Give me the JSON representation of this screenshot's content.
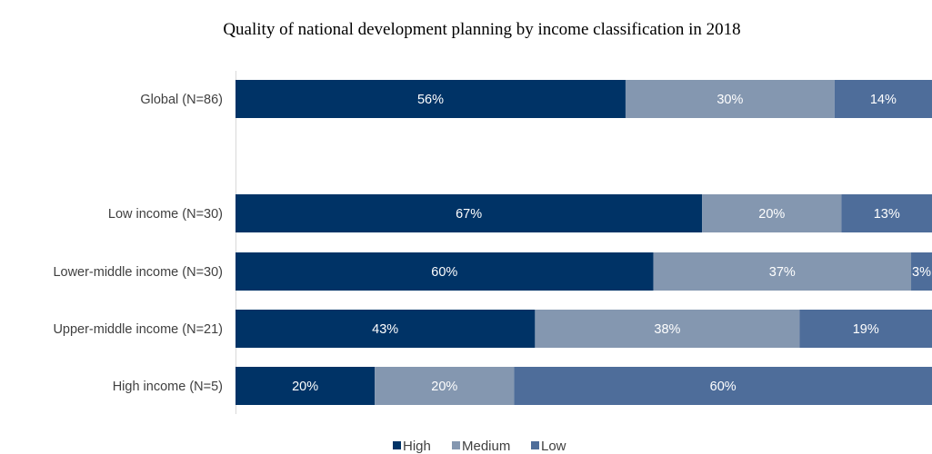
{
  "chart_data": {
    "type": "bar",
    "orientation": "horizontal",
    "stacked": true,
    "title": "Quality of national development planning by income classification in 2018",
    "xlabel": "",
    "ylabel": "",
    "xlim": [
      0,
      100
    ],
    "grid": false,
    "legend_position": "bottom",
    "categories": [
      "Global (N=86)",
      "Low income (N=30)",
      "Lower-middle income (N=30)",
      "Upper-middle income (N=21)",
      "High income (N=5)"
    ],
    "gap_after_first_category": true,
    "series": [
      {
        "name": "High",
        "color": "#003366",
        "values": [
          56,
          67,
          60,
          43,
          20
        ],
        "labels": [
          "56%",
          "67%",
          "60%",
          "43%",
          "20%"
        ]
      },
      {
        "name": "Medium",
        "color": "#8497b0",
        "values": [
          30,
          20,
          37,
          38,
          20
        ],
        "labels": [
          "30%",
          "20%",
          "37%",
          "38%",
          "20%"
        ]
      },
      {
        "name": "Low",
        "color": "#4e6d9a",
        "values": [
          14,
          13,
          3,
          19,
          60
        ],
        "labels": [
          "14%",
          "13%",
          "3%",
          "19%",
          "60%"
        ]
      }
    ]
  }
}
